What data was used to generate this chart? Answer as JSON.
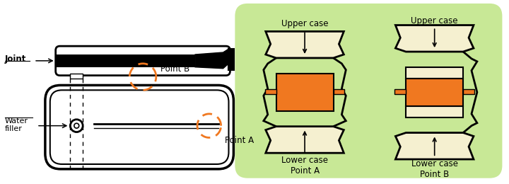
{
  "bg_color": "#ffffff",
  "green_bg": "#c8e896",
  "orange_fill": "#f07820",
  "cream_fill": "#f5f0d0",
  "black": "#000000",
  "dashed_orange": "#f07820",
  "labels": {
    "water_filler": "Water\nfiller",
    "joint": "Joint",
    "point_a": "Point A",
    "point_b": "Point B",
    "upper_case": "Upper case",
    "lower_case_a": "Lower case\nPoint A",
    "lower_case_b": "Lower case\nPoint B"
  }
}
